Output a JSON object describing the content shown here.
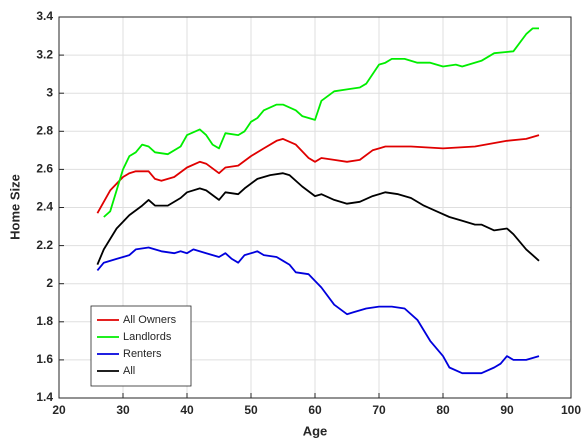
{
  "chart_data": {
    "type": "line",
    "xlabel": "Age",
    "ylabel": "Home Size",
    "xlim": [
      20,
      100
    ],
    "xticks": [
      20,
      30,
      40,
      50,
      60,
      70,
      80,
      90,
      100
    ],
    "ylim": [
      1.4,
      3.4
    ],
    "yticks": [
      1.4,
      1.6,
      1.8,
      2,
      2.2,
      2.4,
      2.6,
      2.8,
      3,
      3.2,
      3.4
    ],
    "grid": true,
    "legend": "lower left",
    "series": [
      {
        "name": "All Owners",
        "color": "#e00000",
        "x": [
          26,
          28,
          30,
          31,
          32,
          34,
          35,
          36,
          38,
          40,
          42,
          43,
          45,
          46,
          48,
          50,
          52,
          54,
          55,
          57,
          59,
          60,
          61,
          63,
          65,
          67,
          69,
          71,
          75,
          80,
          85,
          90,
          93,
          95
        ],
        "values": [
          2.37,
          2.49,
          2.56,
          2.58,
          2.59,
          2.59,
          2.55,
          2.54,
          2.56,
          2.61,
          2.64,
          2.63,
          2.58,
          2.61,
          2.62,
          2.67,
          2.71,
          2.75,
          2.76,
          2.73,
          2.66,
          2.64,
          2.66,
          2.65,
          2.64,
          2.65,
          2.7,
          2.72,
          2.72,
          2.71,
          2.72,
          2.75,
          2.76,
          2.78
        ]
      },
      {
        "name": "Landlords",
        "color": "#00ee00",
        "x": [
          27,
          28,
          30,
          31,
          32,
          33,
          34,
          35,
          37,
          39,
          40,
          42,
          43,
          44,
          45,
          46,
          48,
          49,
          50,
          51,
          52,
          54,
          55,
          57,
          58,
          60,
          61,
          63,
          65,
          67,
          68,
          70,
          71,
          72,
          74,
          76,
          78,
          80,
          82,
          83,
          86,
          88,
          91,
          93,
          94,
          95
        ],
        "values": [
          2.35,
          2.38,
          2.6,
          2.67,
          2.69,
          2.73,
          2.72,
          2.69,
          2.68,
          2.72,
          2.78,
          2.81,
          2.78,
          2.73,
          2.71,
          2.79,
          2.78,
          2.8,
          2.85,
          2.87,
          2.91,
          2.94,
          2.94,
          2.91,
          2.88,
          2.86,
          2.96,
          3.01,
          3.02,
          3.03,
          3.05,
          3.15,
          3.16,
          3.18,
          3.18,
          3.16,
          3.16,
          3.14,
          3.15,
          3.14,
          3.17,
          3.21,
          3.22,
          3.31,
          3.34,
          3.34
        ]
      },
      {
        "name": "Renters",
        "color": "#0000dd",
        "x": [
          26,
          27,
          29,
          31,
          32,
          34,
          36,
          38,
          39,
          40,
          41,
          43,
          45,
          46,
          47,
          48,
          49,
          51,
          52,
          54,
          55,
          56,
          57,
          59,
          61,
          63,
          65,
          66,
          68,
          70,
          72,
          74,
          76,
          78,
          80,
          81,
          83,
          86,
          88,
          89,
          90,
          91,
          93,
          94,
          95
        ],
        "values": [
          2.07,
          2.11,
          2.13,
          2.15,
          2.18,
          2.19,
          2.17,
          2.16,
          2.17,
          2.16,
          2.18,
          2.16,
          2.14,
          2.16,
          2.13,
          2.11,
          2.15,
          2.17,
          2.15,
          2.14,
          2.12,
          2.1,
          2.06,
          2.05,
          1.98,
          1.89,
          1.84,
          1.85,
          1.87,
          1.88,
          1.88,
          1.87,
          1.81,
          1.7,
          1.62,
          1.56,
          1.53,
          1.53,
          1.56,
          1.58,
          1.62,
          1.6,
          1.6,
          1.61,
          1.62
        ]
      },
      {
        "name": "All",
        "color": "#000000",
        "x": [
          26,
          27,
          29,
          31,
          33,
          34,
          35,
          37,
          39,
          40,
          42,
          43,
          45,
          46,
          48,
          49,
          51,
          53,
          55,
          56,
          58,
          60,
          61,
          63,
          65,
          67,
          69,
          71,
          73,
          75,
          77,
          79,
          81,
          83,
          85,
          86,
          88,
          90,
          91,
          93,
          94,
          95
        ],
        "values": [
          2.1,
          2.18,
          2.29,
          2.36,
          2.41,
          2.44,
          2.41,
          2.41,
          2.45,
          2.48,
          2.5,
          2.49,
          2.44,
          2.48,
          2.47,
          2.5,
          2.55,
          2.57,
          2.58,
          2.57,
          2.51,
          2.46,
          2.47,
          2.44,
          2.42,
          2.43,
          2.46,
          2.48,
          2.47,
          2.45,
          2.41,
          2.38,
          2.35,
          2.33,
          2.31,
          2.31,
          2.28,
          2.29,
          2.26,
          2.18,
          2.15,
          2.12
        ]
      }
    ]
  }
}
